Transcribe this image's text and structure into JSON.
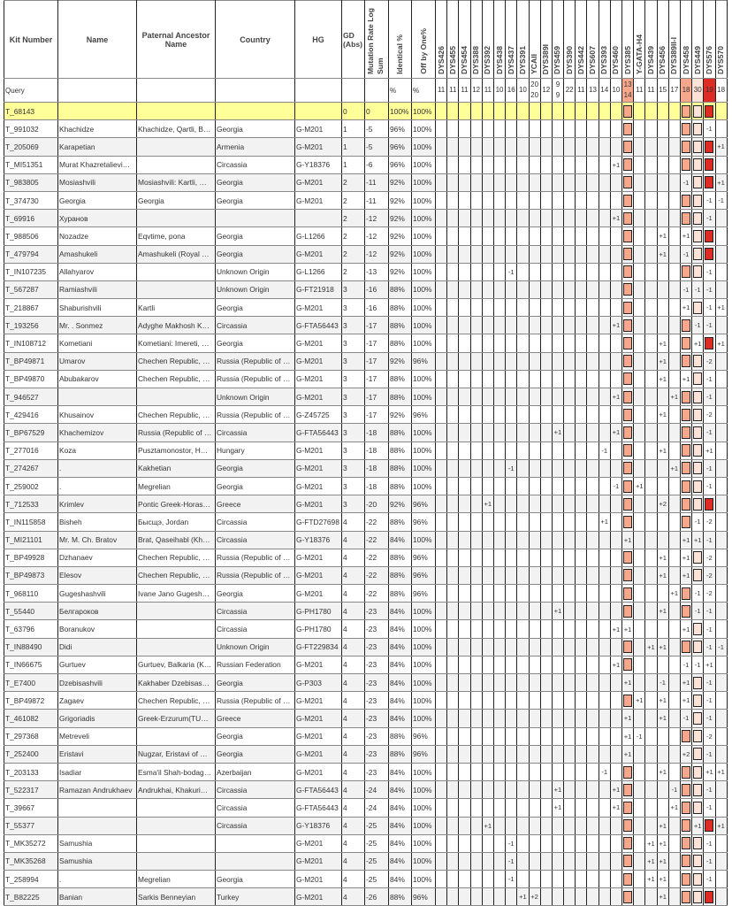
{
  "headers": {
    "kit": "Kit Number",
    "name": "Name",
    "ancestor": "Paternal Ancestor Name",
    "country": "Country",
    "hg": "HG",
    "gd": "GD (Abs)",
    "mut": "Mutation Rate Log Sum",
    "ident": "Identical %",
    "off": "Off by One%"
  },
  "markers": [
    "DYS426",
    "DYS455",
    "DYS454",
    "DYS388",
    "DYS392",
    "DYS438",
    "DYS437",
    "DYS391",
    "YCAII",
    "DYS389I",
    "DYS459",
    "DYS390",
    "DYS442",
    "DYS607",
    "DYS393",
    "DYS460",
    "DYS385",
    "Y-GATA-H4",
    "DYS439",
    "DYS456",
    "DYS389II-I",
    "DYS458",
    "DYS449",
    "DYS576",
    "DYS570"
  ],
  "query": {
    "label": "Query",
    "ident": "%",
    "off": "%",
    "values": [
      "11",
      "11",
      "11",
      "12",
      "11",
      "10",
      "16",
      "10",
      "20\n20",
      "12",
      "9\n9",
      "22",
      "11",
      "13",
      "14",
      "10",
      "13\n14",
      "11",
      "11",
      "15",
      "17",
      "18",
      "30",
      "19",
      "18"
    ]
  },
  "highlight_colors": {
    "DYS385": "#f7a88c",
    "DYS458": "#f7a88c",
    "DYS449": "#fde2d8",
    "DYS576": "#dd2c25"
  },
  "row_colors": {
    "highlight": "#ffff99",
    "alternate": "#f2f2f2"
  },
  "rows": [
    [
      "T_68143",
      "",
      "",
      "",
      "",
      "0",
      "0",
      "100%",
      "100%",
      {}
    ],
    [
      "T_991032",
      "Khachidze",
      "Khachidze, Qartli, B…",
      "Georgia",
      "G-M201",
      "1",
      "-5",
      "96%",
      "100%",
      {
        "DYS576": "-1"
      }
    ],
    [
      "T_205069",
      "Karapetian",
      "",
      "Armenia",
      "G-M201",
      "1",
      "-5",
      "96%",
      "100%",
      {
        "DYS570": "+1"
      }
    ],
    [
      "T_MI51351",
      "Murat Khazretalievi…",
      "",
      "Circassia",
      "G-Y18376",
      "1",
      "-6",
      "96%",
      "100%",
      {
        "DYS460": "+1"
      }
    ],
    [
      "T_983805",
      "Mosiashvili",
      "Mosiashvili: Kartli, …",
      "Georgia",
      "G-M201",
      "2",
      "-11",
      "92%",
      "100%",
      {
        "DYS458": "-1",
        "DYS570": "+1"
      }
    ],
    [
      "T_374730",
      "Georgia",
      "Georgia",
      "Georgia",
      "G-M201",
      "2",
      "-11",
      "92%",
      "100%",
      {
        "DYS576": "-1",
        "DYS570": "-1"
      }
    ],
    [
      "T_69916",
      "Хуранов",
      "",
      "",
      "",
      "2",
      "-12",
      "92%",
      "100%",
      {
        "DYS460": "+1",
        "DYS576": "-1"
      }
    ],
    [
      "T_988506",
      "Nozadze",
      "Eqvtime, pona",
      "Georgia",
      "G-L1266",
      "2",
      "-12",
      "92%",
      "100%",
      {
        "DYS456": "+1",
        "DYS458": "+1"
      }
    ],
    [
      "T_479794",
      "Amashukeli",
      "Amashukeli (Royal …",
      "Georgia",
      "G-M201",
      "2",
      "-12",
      "92%",
      "100%",
      {
        "DYS456": "+1",
        "DYS458": "-1"
      }
    ],
    [
      "T_IN107235",
      "Allahyarov",
      "",
      "Unknown Origin",
      "G-L1266",
      "2",
      "-13",
      "92%",
      "100%",
      {
        "DYS437": "-1",
        "DYS576": "-1"
      }
    ],
    [
      "T_567287",
      "Ramiashvili",
      "",
      "Unknown Origin",
      "G-FT21918",
      "3",
      "-16",
      "88%",
      "100%",
      {
        "DYS458": "-1",
        "DYS449": "-1",
        "DYS576": "-1"
      }
    ],
    [
      "T_218867",
      "Shaburishvili",
      "Kartli",
      "Georgia",
      "G-M201",
      "3",
      "-16",
      "88%",
      "100%",
      {
        "DYS458": "+1",
        "DYS576": "-1",
        "DYS570": "+1"
      }
    ],
    [
      "T_193256",
      "Mr. . Sonmez",
      "Adyghe Makhosh K…",
      "Circassia",
      "G-FTA56443",
      "3",
      "-17",
      "88%",
      "100%",
      {
        "DYS460": "+1",
        "DYS449": "-1",
        "DYS576": "-1"
      }
    ],
    [
      "T_IN108712",
      "Kometiani",
      "Kometiani: Imereti, …",
      "Georgia",
      "G-M201",
      "3",
      "-17",
      "88%",
      "100%",
      {
        "DYS456": "+1",
        "DYS449": "+1",
        "DYS570": "+1"
      }
    ],
    [
      "T_BP49871",
      "Umarov",
      "Chechen Republic, …",
      "Russia (Republic of …",
      "G-M201",
      "3",
      "-17",
      "92%",
      "96%",
      {
        "DYS456": "+1",
        "DYS576": "-2"
      }
    ],
    [
      "T_BP49870",
      "Abubakarov",
      "Chechen Republic, …",
      "Russia (Republic of …",
      "G-M201",
      "3",
      "-17",
      "88%",
      "100%",
      {
        "DYS456": "+1",
        "DYS458": "+1",
        "DYS576": "-1"
      }
    ],
    [
      "T_946527",
      "",
      "",
      "Unknown Origin",
      "G-M201",
      "3",
      "-17",
      "88%",
      "100%",
      {
        "DYS460": "+1",
        "DYS389II-I": "+1",
        "DYS576": "-1"
      }
    ],
    [
      "T_429416",
      "Khusainov",
      "Chechen Republic, …",
      "Russia (Republic of …",
      "G-Z45725",
      "3",
      "-17",
      "92%",
      "96%",
      {
        "DYS456": "+1",
        "DYS576": "-2"
      }
    ],
    [
      "T_BP67529",
      "Khachemizov",
      "Russia (Republic of …",
      "Circassia",
      "G-FTA56443",
      "3",
      "-18",
      "88%",
      "100%",
      {
        "DYS459": "+1",
        "DYS460": "+1",
        "DYS576": "-1"
      }
    ],
    [
      "T_277016",
      "Koza",
      "Pusztamonostor, H…",
      "Hungary",
      "G-M201",
      "3",
      "-18",
      "88%",
      "100%",
      {
        "DYS393": "-1",
        "DYS456": "+1",
        "DYS576": "+1"
      }
    ],
    [
      "T_274267",
      ".",
      "Kakhetian",
      "Georgia",
      "G-M201",
      "3",
      "-18",
      "88%",
      "100%",
      {
        "DYS437": "-1",
        "DYS389II-I": "+1",
        "DYS576": "-1"
      }
    ],
    [
      "T_259002",
      ".",
      "Megrelian",
      "Georgia",
      "G-M201",
      "3",
      "-18",
      "88%",
      "100%",
      {
        "DYS460": "-1",
        "Y-GATA-H4": "+1",
        "DYS576": "-1"
      }
    ],
    [
      "T_712533",
      "Krimlev",
      "Pontic Greek-Horas…",
      "Greece",
      "G-M201",
      "3",
      "-20",
      "92%",
      "96%",
      {
        "DYS392": "+1",
        "DYS456": "+2"
      }
    ],
    [
      "T_IN115858",
      "Bisheh",
      "Бысщэ, Jordan",
      "Circassia",
      "G-FTD27698",
      "4",
      "-22",
      "88%",
      "96%",
      {
        "DYS393": "+1",
        "DYS449": "-1",
        "DYS576": "-2"
      }
    ],
    [
      "T_MI21101",
      "Mr. M. Ch. Bratov",
      "Brat, Qaseihabl (Kh…",
      "Circassia",
      "G-Y18376",
      "4",
      "-22",
      "84%",
      "100%",
      {
        "DYS385": "+1",
        "DYS458": "+1",
        "DYS449": "+1",
        "DYS576": "-1"
      }
    ],
    [
      "T_BP49928",
      "Dzhanaev",
      "Chechen Republic, …",
      "Russia (Republic of …",
      "G-M201",
      "4",
      "-22",
      "88%",
      "96%",
      {
        "DYS456": "+1",
        "DYS458": "+1",
        "DYS576": "-2"
      }
    ],
    [
      "T_BP49873",
      "Elesov",
      "Chechen Republic, …",
      "Russia (Republic of …",
      "G-M201",
      "4",
      "-22",
      "88%",
      "96%",
      {
        "DYS456": "+1",
        "DYS458": "+1",
        "DYS576": "-2"
      }
    ],
    [
      "T_968110",
      "Gugeshashvili",
      "Ivane Jano Gugesh…",
      "Georgia",
      "G-M201",
      "4",
      "-22",
      "88%",
      "96%",
      {
        "DYS389II-I": "+1",
        "DYS449": "-1",
        "DYS576": "-2"
      }
    ],
    [
      "T_55440",
      "Белгароков",
      "",
      "Circassia",
      "G-PH1780",
      "4",
      "-23",
      "84%",
      "100%",
      {
        "DYS459": "+1",
        "DYS456": "+1",
        "DYS449": "-1",
        "DYS576": "-1"
      }
    ],
    [
      "T_63796",
      "Boranukov",
      "",
      "Circassia",
      "G-PH1780",
      "4",
      "-23",
      "84%",
      "100%",
      {
        "DYS460": "+1",
        "DYS385": "+1",
        "DYS458": "+1",
        "DYS576": "-1"
      }
    ],
    [
      "T_IN88490",
      "Didi",
      "",
      "Unknown Origin",
      "G-FT229834",
      "4",
      "-23",
      "84%",
      "100%",
      {
        "DYS439": "+1",
        "DYS456": "+1",
        "DYS576": "-1",
        "DYS570": "-1"
      }
    ],
    [
      "T_IN66675",
      "Gurtuev",
      "Gurtuev, Balkaria (K…",
      "Russian Federation",
      "G-M201",
      "4",
      "-23",
      "84%",
      "100%",
      {
        "DYS460": "+1",
        "DYS458": "-1",
        "DYS449": "-1",
        "DYS576": "+1"
      }
    ],
    [
      "T_E7400",
      "Dzebisashvili",
      "Kakhaber Dzebisas…",
      "Georgia",
      "G-P303",
      "4",
      "-23",
      "84%",
      "100%",
      {
        "DYS385": "+1",
        "DYS456": "-1",
        "DYS458": "+1",
        "DYS576": "-1"
      }
    ],
    [
      "T_BP49872",
      "Zagaev",
      "Chechen Republic, …",
      "Russia (Republic of …",
      "G-M201",
      "4",
      "-23",
      "84%",
      "100%",
      {
        "Y-GATA-H4": "+1",
        "DYS456": "+1",
        "DYS458": "+1",
        "DYS576": "-1"
      }
    ],
    [
      "T_461082",
      "Grigoriadis",
      "Greek-Erzurum(TU…",
      "Greece",
      "G-M201",
      "4",
      "-23",
      "84%",
      "100%",
      {
        "DYS385": "+1",
        "DYS456": "+1",
        "DYS458": "-1",
        "DYS576": "-1"
      }
    ],
    [
      "T_297368",
      "Metreveli",
      "",
      "Georgia",
      "G-M201",
      "4",
      "-23",
      "88%",
      "96%",
      {
        "DYS385": "+1",
        "Y-GATA-H4": "-1",
        "DYS576": "-2"
      }
    ],
    [
      "T_252400",
      "Eristavi",
      "Nugzar, Eristavi of …",
      "Georgia",
      "G-M201",
      "4",
      "-23",
      "88%",
      "96%",
      {
        "DYS385": "+1",
        "DYS458": "+2",
        "DYS576": "-1"
      }
    ],
    [
      "T_203133",
      "Isadiar",
      "Esma'il Shah-bodag…",
      "Azerbaijan",
      "G-M201",
      "4",
      "-23",
      "84%",
      "100%",
      {
        "DYS393": "-1",
        "DYS456": "+1",
        "DYS576": "+1",
        "DYS570": "+1"
      }
    ],
    [
      "T_522317",
      "Ramazan Andrukhaev",
      "Andrukhai, Khakuri…",
      "Circassia",
      "G-FTA56443",
      "4",
      "-24",
      "84%",
      "100%",
      {
        "DYS459": "+1",
        "DYS460": "+1",
        "DYS389II-I": "-1",
        "DYS576": "-1"
      }
    ],
    [
      "T_39667",
      "",
      "",
      "Circassia",
      "G-FTA56443",
      "4",
      "-24",
      "84%",
      "100%",
      {
        "DYS459": "+1",
        "DYS460": "+1",
        "DYS389II-I": "+1",
        "DYS576": "-1"
      }
    ],
    [
      "T_55377",
      "",
      "",
      "Circassia",
      "G-Y18376",
      "4",
      "-25",
      "84%",
      "100%",
      {
        "DYS392": "+1",
        "DYS456": "+1",
        "DYS449": "+1",
        "DYS570": "+1"
      }
    ],
    [
      "T_MK35272",
      "Samushia",
      "",
      "",
      "G-M201",
      "4",
      "-25",
      "84%",
      "100%",
      {
        "DYS437": "-1",
        "DYS439": "+1",
        "DYS456": "+1",
        "DYS576": "-1"
      }
    ],
    [
      "T_MK35268",
      "Samushia",
      "",
      "",
      "G-M201",
      "4",
      "-25",
      "84%",
      "100%",
      {
        "DYS437": "-1",
        "DYS439": "+1",
        "DYS456": "+1",
        "DYS576": "-1"
      }
    ],
    [
      "T_258994",
      ".",
      "Megrelian",
      "Georgia",
      "G-M201",
      "4",
      "-25",
      "84%",
      "100%",
      {
        "DYS437": "-1",
        "DYS439": "+1",
        "DYS456": "+1",
        "DYS576": "-1"
      }
    ],
    [
      "T_B82225",
      "Banian",
      "Sarkis Benneyian",
      "Turkey",
      "G-M201",
      "4",
      "-26",
      "88%",
      "96%",
      {
        "DYS391": "+1",
        "YCAII": "+2",
        "DYS456": "+1"
      }
    ]
  ]
}
